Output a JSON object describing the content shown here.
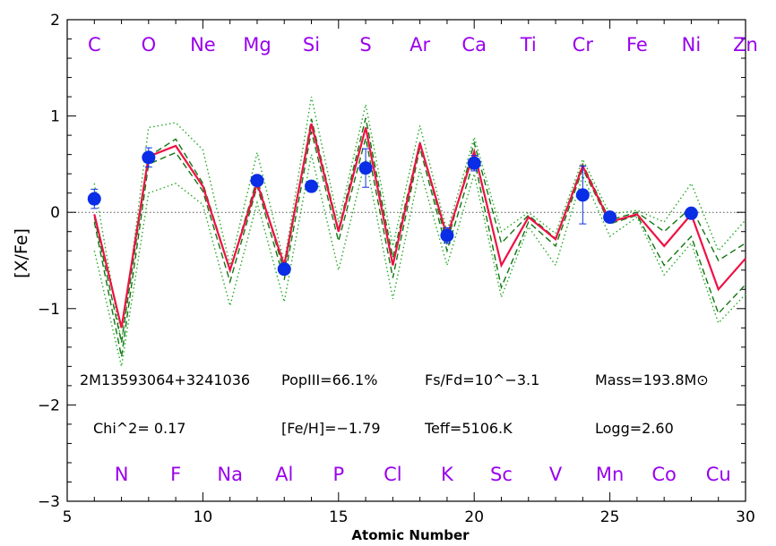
{
  "chart_data": {
    "type": "line",
    "title": "",
    "xlabel": "Atomic Number",
    "ylabel": "[X/Fe]",
    "xlim": [
      5,
      30
    ],
    "ylim": [
      -3,
      2
    ],
    "xticks": [
      5,
      10,
      15,
      20,
      25,
      30
    ],
    "yticks": [
      -3,
      -2,
      -1,
      0,
      1,
      2
    ],
    "grid": false,
    "reference_line": {
      "y": 0,
      "style": "dotted"
    },
    "element_labels_top": [
      {
        "z": 6,
        "label": "C"
      },
      {
        "z": 8,
        "label": "O"
      },
      {
        "z": 10,
        "label": "Ne"
      },
      {
        "z": 12,
        "label": "Mg"
      },
      {
        "z": 14,
        "label": "Si"
      },
      {
        "z": 16,
        "label": "S"
      },
      {
        "z": 18,
        "label": "Ar"
      },
      {
        "z": 20,
        "label": "Ca"
      },
      {
        "z": 22,
        "label": "Ti"
      },
      {
        "z": 24,
        "label": "Cr"
      },
      {
        "z": 26,
        "label": "Fe"
      },
      {
        "z": 28,
        "label": "Ni"
      },
      {
        "z": 30,
        "label": "Zn"
      }
    ],
    "element_labels_bottom": [
      {
        "z": 7,
        "label": "N"
      },
      {
        "z": 9,
        "label": "F"
      },
      {
        "z": 11,
        "label": "Na"
      },
      {
        "z": 13,
        "label": "Al"
      },
      {
        "z": 15,
        "label": "P"
      },
      {
        "z": 17,
        "label": "Cl"
      },
      {
        "z": 19,
        "label": "K"
      },
      {
        "z": 21,
        "label": "Sc"
      },
      {
        "z": 23,
        "label": "V"
      },
      {
        "z": 25,
        "label": "Mn"
      },
      {
        "z": 27,
        "label": "Co"
      },
      {
        "z": 29,
        "label": "Cu"
      }
    ],
    "annotations": [
      "2M13593064+3241036",
      "PopIII=66.1%",
      "Fs/Fd=10^-3.1",
      "Mass=193.8M⊙",
      "Chi^2= 0.17",
      "[Fe/H]=-1.79",
      "Teff=5106.K",
      "Logg=2.60"
    ],
    "x": [
      6,
      7,
      8,
      9,
      10,
      11,
      12,
      13,
      14,
      15,
      16,
      17,
      18,
      19,
      20,
      21,
      22,
      23,
      24,
      25,
      26,
      27,
      28,
      29,
      30
    ],
    "series": [
      {
        "style": "solid",
        "color": "#ee1144",
        "values": [
          -0.02,
          -1.2,
          0.58,
          0.69,
          0.27,
          -0.6,
          0.3,
          -0.55,
          0.92,
          -0.2,
          0.88,
          -0.55,
          0.72,
          -0.25,
          0.63,
          -0.55,
          -0.05,
          -0.28,
          0.48,
          -0.1,
          -0.02,
          -0.35,
          -0.02,
          -0.8,
          -0.48
        ]
      },
      {
        "style": "dashed",
        "color": "#117711",
        "values": [
          -0.05,
          -1.35,
          0.58,
          0.76,
          0.3,
          -0.6,
          0.35,
          -0.62,
          0.97,
          -0.18,
          0.98,
          -0.47,
          0.73,
          -0.32,
          0.72,
          -0.32,
          -0.03,
          -0.27,
          0.5,
          -0.08,
          0.0,
          -0.2,
          0.05,
          -0.5,
          -0.32
        ]
      },
      {
        "style": "dashed",
        "color": "#117711",
        "values": [
          -0.1,
          -1.5,
          0.5,
          0.62,
          0.22,
          -0.72,
          0.27,
          -0.7,
          0.84,
          -0.3,
          0.77,
          -0.68,
          0.67,
          -0.4,
          0.55,
          -0.78,
          -0.1,
          -0.35,
          0.45,
          -0.12,
          -0.03,
          -0.55,
          -0.25,
          -1.05,
          -0.75
        ]
      },
      {
        "style": "dotted",
        "color": "#22aa22",
        "values": [
          0.3,
          -1.35,
          0.88,
          0.93,
          0.65,
          -0.55,
          0.62,
          -0.52,
          1.2,
          -0.1,
          1.12,
          -0.35,
          0.9,
          -0.2,
          0.78,
          -0.2,
          0.0,
          -0.22,
          0.55,
          -0.02,
          0.02,
          -0.1,
          0.3,
          -0.4,
          -0.08
        ]
      },
      {
        "style": "dotted",
        "color": "#22aa22",
        "values": [
          -0.4,
          -1.6,
          0.2,
          0.3,
          0.08,
          -0.97,
          0.1,
          -0.93,
          0.6,
          -0.6,
          0.55,
          -0.9,
          0.45,
          -0.55,
          0.4,
          -0.88,
          -0.15,
          -0.55,
          0.38,
          -0.25,
          -0.05,
          -0.65,
          -0.32,
          -1.15,
          -0.85
        ]
      }
    ],
    "observed": {
      "color": "#0a2de6",
      "points": [
        {
          "x": 6,
          "y": 0.14,
          "err": 0.1
        },
        {
          "x": 8,
          "y": 0.57,
          "err": 0.1
        },
        {
          "x": 12,
          "y": 0.33,
          "err": 0.03
        },
        {
          "x": 13,
          "y": -0.59,
          "err": 0.03
        },
        {
          "x": 14,
          "y": 0.27,
          "err": 0.0
        },
        {
          "x": 16,
          "y": 0.46,
          "err": 0.2
        },
        {
          "x": 19,
          "y": -0.24,
          "err": 0.08
        },
        {
          "x": 20,
          "y": 0.51,
          "err": 0.08
        },
        {
          "x": 24,
          "y": 0.18,
          "err": 0.3
        },
        {
          "x": 25,
          "y": -0.05,
          "err": 0.03
        },
        {
          "x": 28,
          "y": -0.01,
          "err": 0.03
        }
      ]
    },
    "colors": {
      "element_label": "#9900ee",
      "axis": "#000000"
    }
  }
}
